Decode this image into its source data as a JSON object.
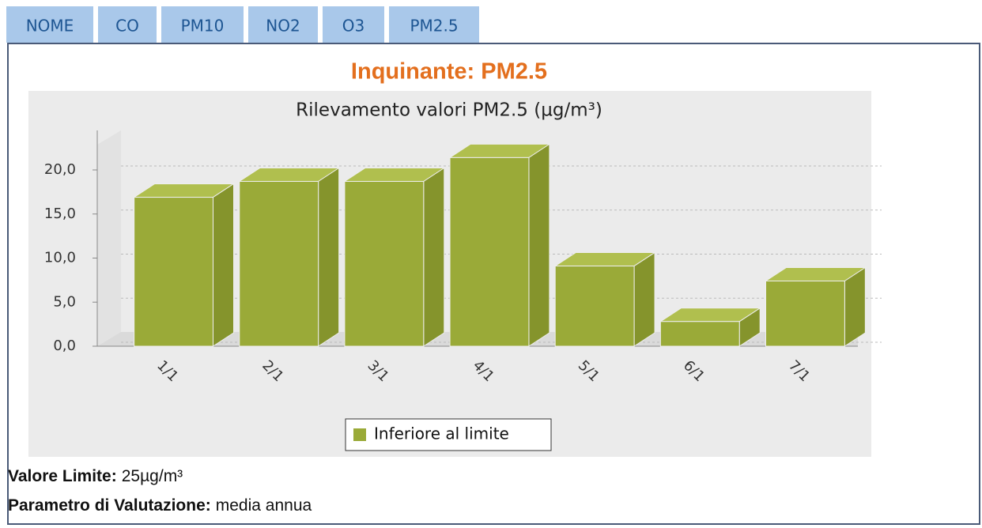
{
  "tabs": [
    "NOME",
    "CO",
    "PM10",
    "NO2",
    "O3",
    "PM2.5"
  ],
  "heading": "Inquinante: PM2.5",
  "chart_data": {
    "type": "bar",
    "title": "Rilevamento valori PM2.5 (µg/m³)",
    "categories": [
      "1/1",
      "2/1",
      "3/1",
      "4/1",
      "5/1",
      "6/1",
      "7/1"
    ],
    "series": [
      {
        "name": "Inferiore al limite",
        "color": "#9aaa38",
        "values": [
          16.9,
          18.7,
          18.7,
          21.4,
          9.1,
          2.8,
          7.4
        ]
      }
    ],
    "ylim": [
      0,
      24
    ],
    "yticks": [
      {
        "value": 0,
        "label": "0,0"
      },
      {
        "value": 5,
        "label": "5,0"
      },
      {
        "value": 10,
        "label": "10,0"
      },
      {
        "value": 15,
        "label": "15,0"
      },
      {
        "value": 20,
        "label": "20,0"
      }
    ],
    "grid": true
  },
  "info": [
    {
      "label": "Valore Limite:",
      "value": "25µg/m³"
    },
    {
      "label": "Parametro di Valutazione:",
      "value": "media annua"
    }
  ]
}
